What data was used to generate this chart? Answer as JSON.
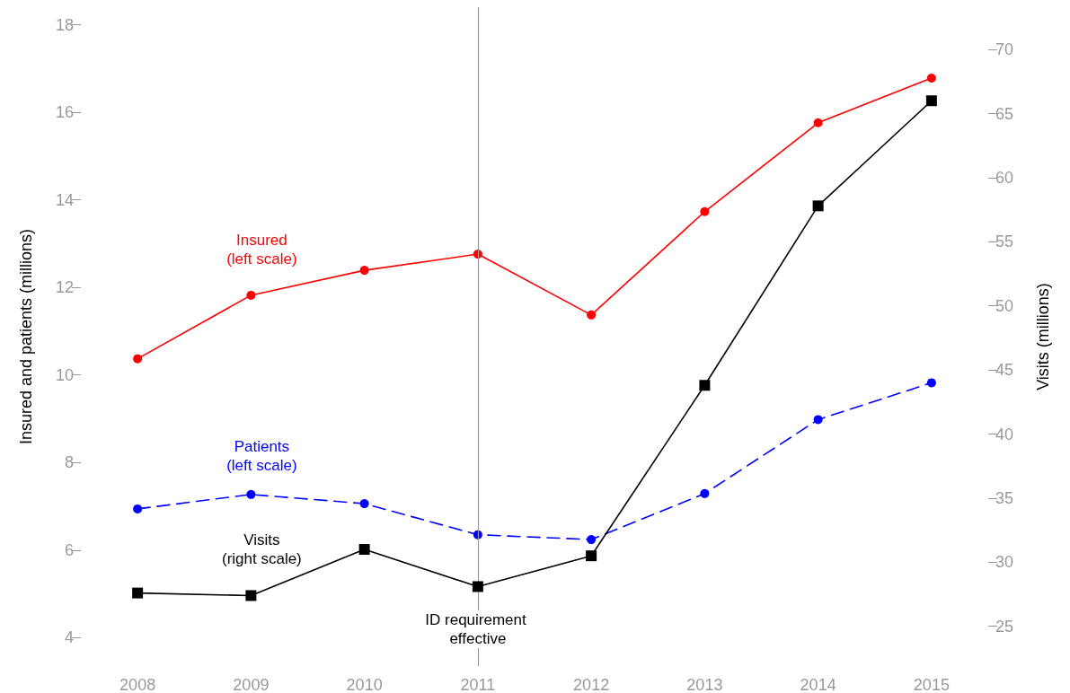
{
  "chart_data": {
    "type": "line",
    "categories": [
      "2008",
      "2009",
      "2010",
      "2011",
      "2012",
      "2013",
      "2014",
      "2015"
    ],
    "ylabel": "Insured and patients (millions)",
    "y2label": "Visits (millions)",
    "ylim": [
      3.35,
      18.4
    ],
    "yticks": [
      4,
      6,
      8,
      10,
      12,
      14,
      16,
      18
    ],
    "y2lim": [
      21.9,
      73.3
    ],
    "y2ticks": [
      25,
      30,
      35,
      40,
      45,
      50,
      55,
      60,
      65,
      70
    ],
    "series": [
      {
        "name": "Insured (left scale)",
        "color": "#ff0000",
        "marker": "circle",
        "line_style": "solid",
        "values": [
          10.37,
          11.82,
          12.39,
          12.76,
          11.37,
          13.73,
          15.76,
          16.78
        ]
      },
      {
        "name": "Patients (left scale)",
        "color": "#0000ff",
        "marker": "circle",
        "line_style": "dashed",
        "values": [
          6.94,
          7.27,
          7.06,
          6.35,
          6.24,
          7.29,
          8.98,
          9.82
        ]
      },
      {
        "name": "Visits (right scale)",
        "color": "#000000",
        "marker": "square",
        "line_style": "solid",
        "axis": "y2",
        "values": [
          27.6,
          27.4,
          31.0,
          28.1,
          30.5,
          43.8,
          57.8,
          66.0
        ]
      }
    ],
    "ref_lines": [
      {
        "axis": "x",
        "value": "2011",
        "label": "ID requirement effective",
        "color": "#999999"
      }
    ],
    "grid": false
  }
}
